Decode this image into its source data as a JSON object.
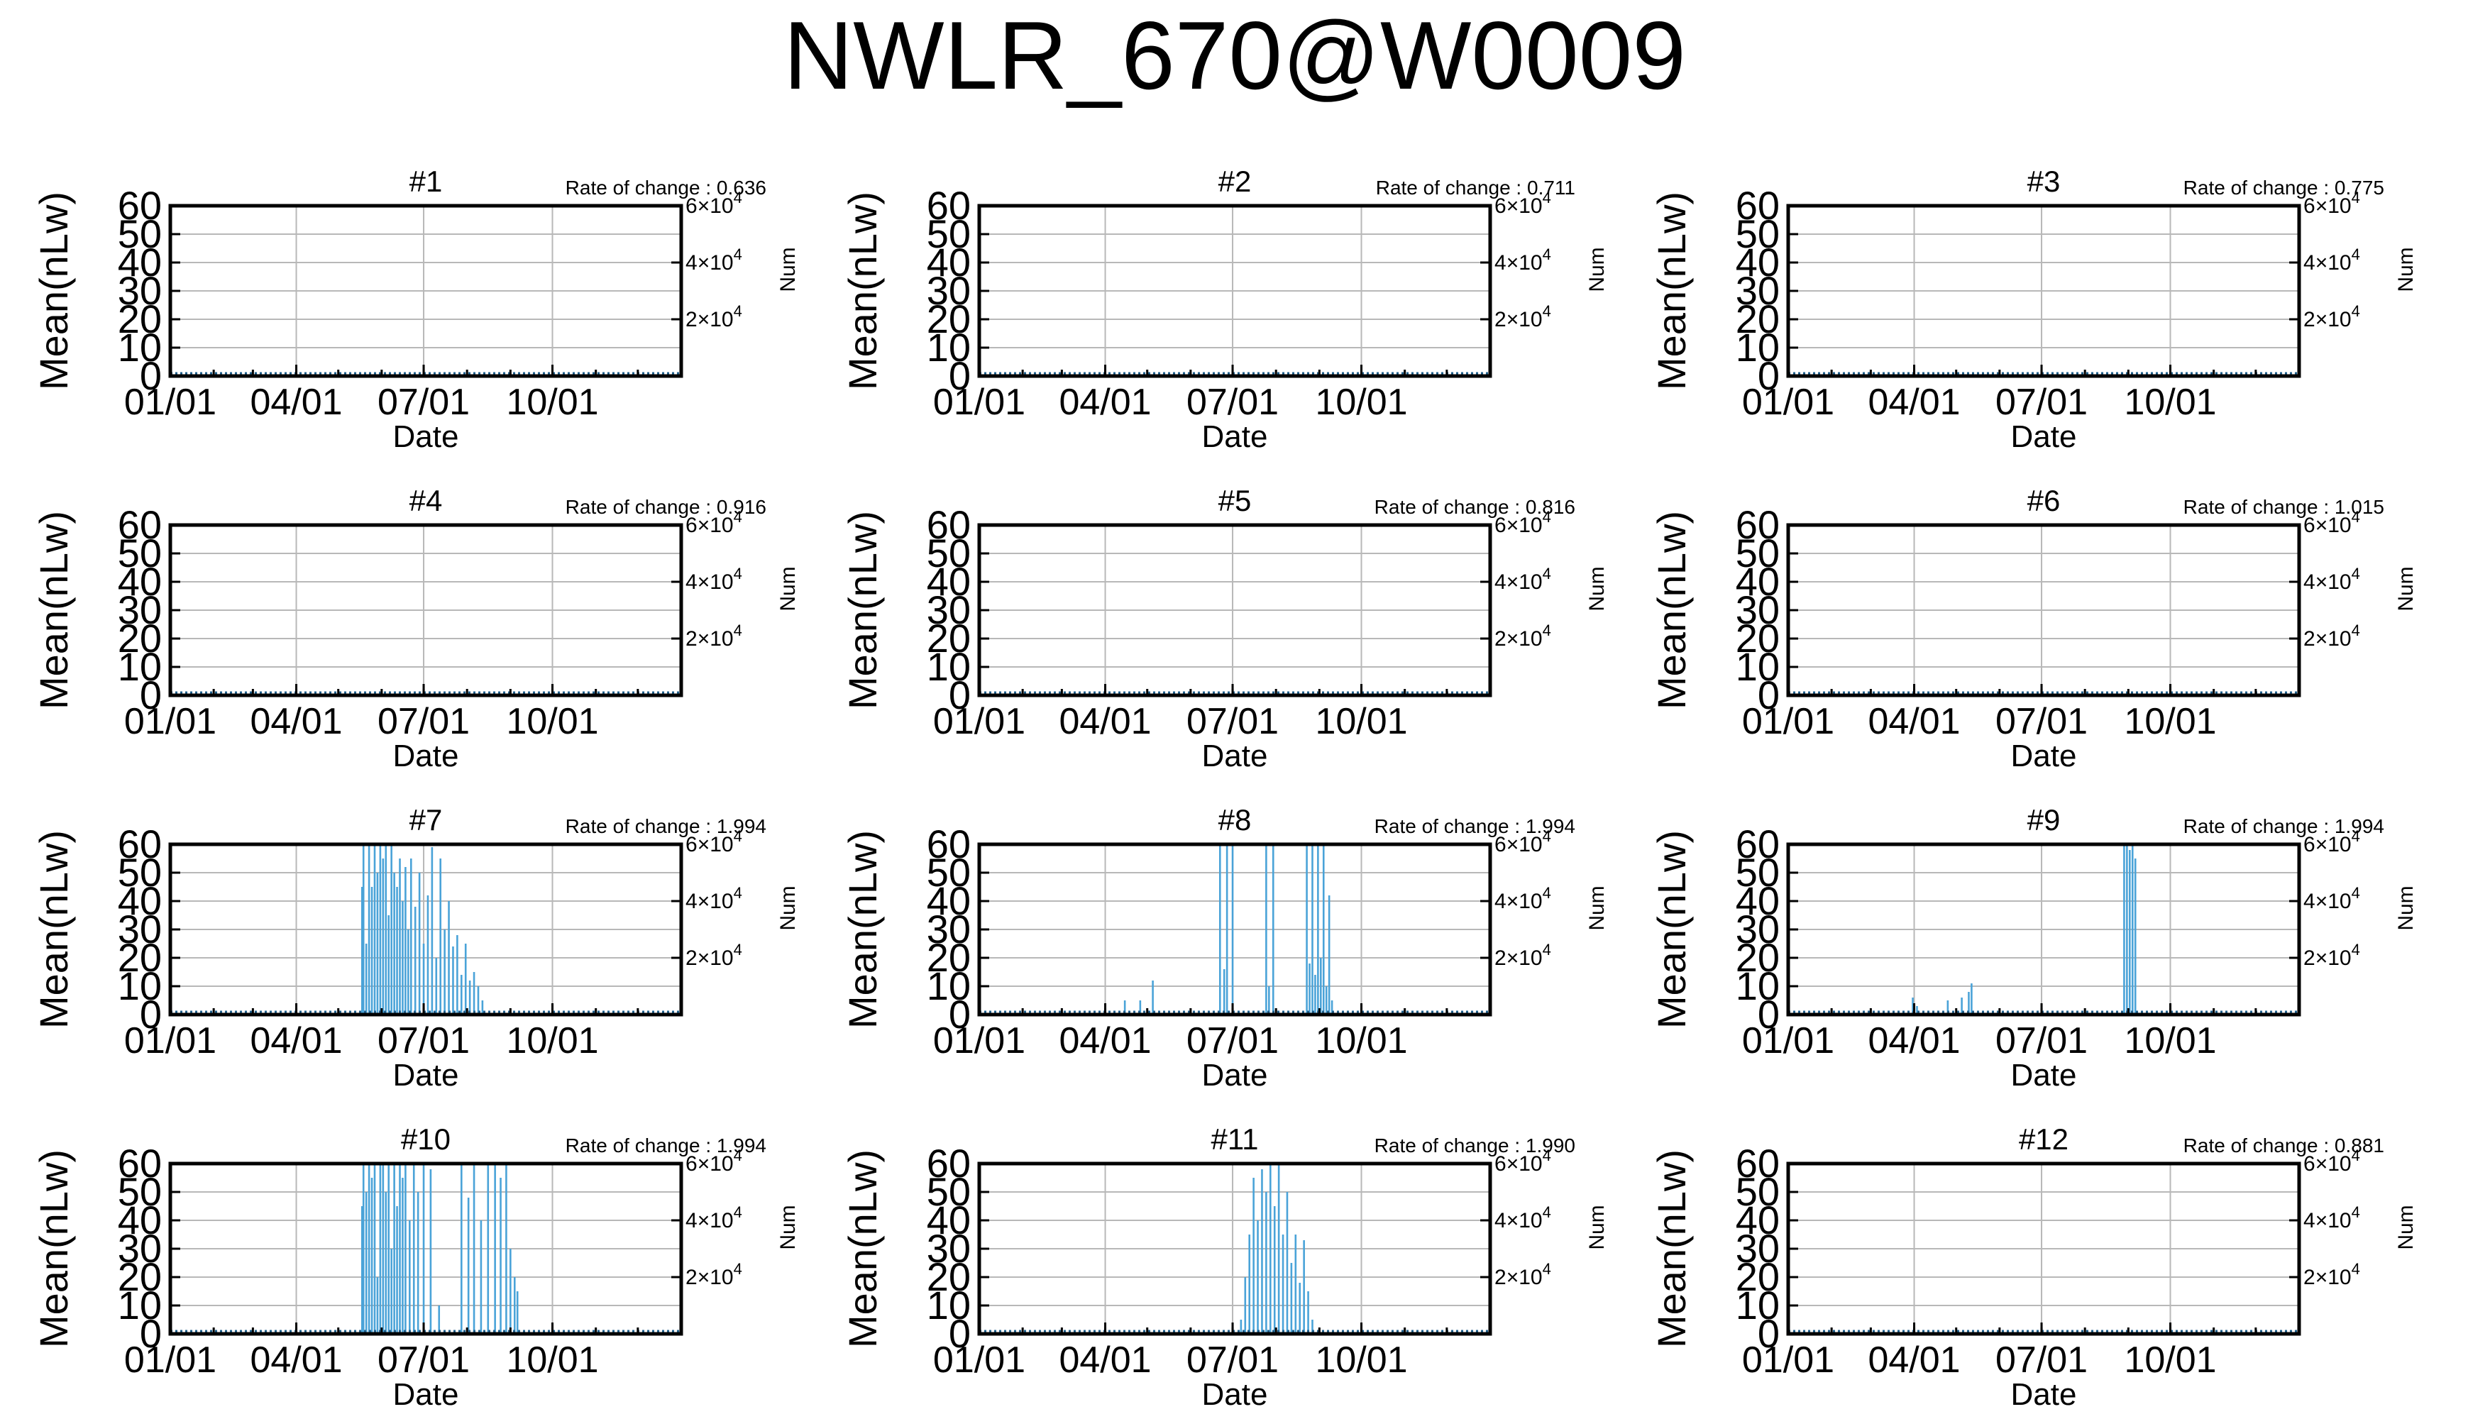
{
  "title": "NWLR_670@W0009",
  "common": {
    "ylabel": "Mean(nLw)",
    "y2label": "Num",
    "xlabel": "Date",
    "y_ticks": [
      "0",
      "10",
      "20",
      "30",
      "40",
      "50",
      "60"
    ],
    "y2_ticks": [
      {
        "mant": "2",
        "exp": "4"
      },
      {
        "mant": "4",
        "exp": "4"
      },
      {
        "mant": "6",
        "exp": "4"
      }
    ],
    "x_ticks": [
      "01/01",
      "04/01",
      "07/01",
      "10/01"
    ],
    "rate_label": "Rate of change : ",
    "colors": {
      "series": "#4aa3d8",
      "baseline": "#1f5f8b",
      "grid": "#b8b8b8",
      "axis": "#000000"
    }
  },
  "chart_data": [
    {
      "type": "bar",
      "panel": "#1",
      "rate": "0.636",
      "xlabel": "Date",
      "ylabel": "Mean(nLw)",
      "y2label": "Num",
      "x_domain": [
        "01/01",
        "12/31"
      ],
      "ylim": [
        0,
        60
      ],
      "y2lim": [
        0,
        60000
      ],
      "grid": true,
      "bars": []
    },
    {
      "type": "bar",
      "panel": "#2",
      "rate": "0.711",
      "xlabel": "Date",
      "ylabel": "Mean(nLw)",
      "y2label": "Num",
      "x_domain": [
        "01/01",
        "12/31"
      ],
      "ylim": [
        0,
        60
      ],
      "y2lim": [
        0,
        60000
      ],
      "grid": true,
      "bars": []
    },
    {
      "type": "bar",
      "panel": "#3",
      "rate": "0.775",
      "xlabel": "Date",
      "ylabel": "Mean(nLw)",
      "y2label": "Num",
      "x_domain": [
        "01/01",
        "12/31"
      ],
      "ylim": [
        0,
        60
      ],
      "y2lim": [
        0,
        60000
      ],
      "grid": true,
      "bars": []
    },
    {
      "type": "bar",
      "panel": "#4",
      "rate": "0.916",
      "xlabel": "Date",
      "ylabel": "Mean(nLw)",
      "y2label": "Num",
      "x_domain": [
        "01/01",
        "12/31"
      ],
      "ylim": [
        0,
        60
      ],
      "y2lim": [
        0,
        60000
      ],
      "grid": true,
      "bars": []
    },
    {
      "type": "bar",
      "panel": "#5",
      "rate": "0.816",
      "xlabel": "Date",
      "ylabel": "Mean(nLw)",
      "y2label": "Num",
      "x_domain": [
        "01/01",
        "12/31"
      ],
      "ylim": [
        0,
        60
      ],
      "y2lim": [
        0,
        60000
      ],
      "grid": true,
      "bars": []
    },
    {
      "type": "bar",
      "panel": "#6",
      "rate": "1.015",
      "xlabel": "Date",
      "ylabel": "Mean(nLw)",
      "y2label": "Num",
      "x_domain": [
        "01/01",
        "12/31"
      ],
      "ylim": [
        0,
        60
      ],
      "y2lim": [
        0,
        60000
      ],
      "grid": true,
      "bars": []
    },
    {
      "type": "bar",
      "panel": "#7",
      "rate": "1.994",
      "xlabel": "Date",
      "ylabel": "Mean(nLw)",
      "y2label": "Num",
      "x_domain": [
        "01/01",
        "12/31"
      ],
      "ylim": [
        0,
        60
      ],
      "y2lim": [
        0,
        60000
      ],
      "grid": true,
      "bars": [
        {
          "date": "05/18",
          "value": 45
        },
        {
          "date": "05/19",
          "value": 60
        },
        {
          "date": "05/21",
          "value": 25
        },
        {
          "date": "05/23",
          "value": 60
        },
        {
          "date": "05/25",
          "value": 45
        },
        {
          "date": "05/27",
          "value": 60
        },
        {
          "date": "05/29",
          "value": 50
        },
        {
          "date": "05/31",
          "value": 60
        },
        {
          "date": "06/02",
          "value": 55
        },
        {
          "date": "06/04",
          "value": 60
        },
        {
          "date": "06/06",
          "value": 35
        },
        {
          "date": "06/08",
          "value": 60
        },
        {
          "date": "06/10",
          "value": 50
        },
        {
          "date": "06/12",
          "value": 45
        },
        {
          "date": "06/14",
          "value": 55
        },
        {
          "date": "06/16",
          "value": 40
        },
        {
          "date": "06/18",
          "value": 52
        },
        {
          "date": "06/20",
          "value": 30
        },
        {
          "date": "06/22",
          "value": 55
        },
        {
          "date": "06/25",
          "value": 38
        },
        {
          "date": "06/28",
          "value": 50
        },
        {
          "date": "07/01",
          "value": 25
        },
        {
          "date": "07/04",
          "value": 42
        },
        {
          "date": "07/07",
          "value": 59
        },
        {
          "date": "07/10",
          "value": 20
        },
        {
          "date": "07/13",
          "value": 55
        },
        {
          "date": "07/16",
          "value": 30
        },
        {
          "date": "07/19",
          "value": 40
        },
        {
          "date": "07/22",
          "value": 24
        },
        {
          "date": "07/25",
          "value": 28
        },
        {
          "date": "07/28",
          "value": 14
        },
        {
          "date": "07/31",
          "value": 25
        },
        {
          "date": "08/03",
          "value": 12
        },
        {
          "date": "08/06",
          "value": 15
        },
        {
          "date": "08/09",
          "value": 10
        },
        {
          "date": "08/12",
          "value": 5
        }
      ]
    },
    {
      "type": "bar",
      "panel": "#8",
      "rate": "1.994",
      "xlabel": "Date",
      "ylabel": "Mean(nLw)",
      "y2label": "Num",
      "x_domain": [
        "01/01",
        "12/31"
      ],
      "ylim": [
        0,
        60
      ],
      "y2lim": [
        0,
        60000
      ],
      "grid": true,
      "bars": [
        {
          "date": "04/15",
          "value": 5
        },
        {
          "date": "04/26",
          "value": 5
        },
        {
          "date": "05/05",
          "value": 12
        },
        {
          "date": "06/22",
          "value": 60
        },
        {
          "date": "06/25",
          "value": 16
        },
        {
          "date": "06/27",
          "value": 60
        },
        {
          "date": "07/01",
          "value": 60
        },
        {
          "date": "07/25",
          "value": 60
        },
        {
          "date": "07/27",
          "value": 10
        },
        {
          "date": "07/30",
          "value": 60
        },
        {
          "date": "08/23",
          "value": 60
        },
        {
          "date": "08/25",
          "value": 18
        },
        {
          "date": "08/27",
          "value": 60
        },
        {
          "date": "08/29",
          "value": 14
        },
        {
          "date": "08/31",
          "value": 60
        },
        {
          "date": "09/02",
          "value": 20
        },
        {
          "date": "09/04",
          "value": 60
        },
        {
          "date": "09/06",
          "value": 10
        },
        {
          "date": "09/08",
          "value": 42
        },
        {
          "date": "09/10",
          "value": 5
        }
      ]
    },
    {
      "type": "bar",
      "panel": "#9",
      "rate": "1.994",
      "xlabel": "Date",
      "ylabel": "Mean(nLw)",
      "y2label": "Num",
      "x_domain": [
        "01/01",
        "12/31"
      ],
      "ylim": [
        0,
        60
      ],
      "y2lim": [
        0,
        60000
      ],
      "grid": true,
      "bars": [
        {
          "date": "03/31",
          "value": 6
        },
        {
          "date": "04/03",
          "value": 3
        },
        {
          "date": "04/25",
          "value": 5
        },
        {
          "date": "05/05",
          "value": 6
        },
        {
          "date": "05/10",
          "value": 8
        },
        {
          "date": "05/12",
          "value": 11
        },
        {
          "date": "08/29",
          "value": 60
        },
        {
          "date": "08/31",
          "value": 60
        },
        {
          "date": "09/02",
          "value": 58
        },
        {
          "date": "09/04",
          "value": 60
        },
        {
          "date": "09/06",
          "value": 55
        }
      ]
    },
    {
      "type": "bar",
      "panel": "#10",
      "rate": "1.994",
      "xlabel": "Date",
      "ylabel": "Mean(nLw)",
      "y2label": "Num",
      "x_domain": [
        "01/01",
        "12/31"
      ],
      "ylim": [
        0,
        60
      ],
      "y2lim": [
        0,
        60000
      ],
      "grid": true,
      "bars": [
        {
          "date": "05/18",
          "value": 45
        },
        {
          "date": "05/19",
          "value": 60
        },
        {
          "date": "05/21",
          "value": 50
        },
        {
          "date": "05/23",
          "value": 60
        },
        {
          "date": "05/25",
          "value": 55
        },
        {
          "date": "05/27",
          "value": 60
        },
        {
          "date": "05/29",
          "value": 20
        },
        {
          "date": "05/31",
          "value": 60
        },
        {
          "date": "06/02",
          "value": 60
        },
        {
          "date": "06/04",
          "value": 50
        },
        {
          "date": "06/06",
          "value": 60
        },
        {
          "date": "06/08",
          "value": 30
        },
        {
          "date": "06/10",
          "value": 60
        },
        {
          "date": "06/12",
          "value": 45
        },
        {
          "date": "06/14",
          "value": 60
        },
        {
          "date": "06/16",
          "value": 55
        },
        {
          "date": "06/18",
          "value": 60
        },
        {
          "date": "06/21",
          "value": 40
        },
        {
          "date": "06/24",
          "value": 60
        },
        {
          "date": "06/27",
          "value": 50
        },
        {
          "date": "07/01",
          "value": 60
        },
        {
          "date": "07/06",
          "value": 58
        },
        {
          "date": "07/12",
          "value": 10
        },
        {
          "date": "07/28",
          "value": 60
        },
        {
          "date": "08/02",
          "value": 48
        },
        {
          "date": "08/06",
          "value": 60
        },
        {
          "date": "08/11",
          "value": 40
        },
        {
          "date": "08/16",
          "value": 60
        },
        {
          "date": "08/21",
          "value": 60
        },
        {
          "date": "08/25",
          "value": 55
        },
        {
          "date": "08/29",
          "value": 60
        },
        {
          "date": "09/01",
          "value": 30
        },
        {
          "date": "09/04",
          "value": 20
        },
        {
          "date": "09/06",
          "value": 15
        }
      ]
    },
    {
      "type": "bar",
      "panel": "#11",
      "rate": "1.990",
      "xlabel": "Date",
      "ylabel": "Mean(nLw)",
      "y2label": "Num",
      "x_domain": [
        "01/01",
        "12/31"
      ],
      "ylim": [
        0,
        60
      ],
      "y2lim": [
        0,
        60000
      ],
      "grid": true,
      "bars": [
        {
          "date": "07/07",
          "value": 5
        },
        {
          "date": "07/10",
          "value": 20
        },
        {
          "date": "07/13",
          "value": 35
        },
        {
          "date": "07/16",
          "value": 55
        },
        {
          "date": "07/19",
          "value": 40
        },
        {
          "date": "07/22",
          "value": 58
        },
        {
          "date": "07/25",
          "value": 50
        },
        {
          "date": "07/28",
          "value": 60
        },
        {
          "date": "07/31",
          "value": 45
        },
        {
          "date": "08/03",
          "value": 60
        },
        {
          "date": "08/06",
          "value": 35
        },
        {
          "date": "08/09",
          "value": 50
        },
        {
          "date": "08/12",
          "value": 25
        },
        {
          "date": "08/15",
          "value": 35
        },
        {
          "date": "08/18",
          "value": 18
        },
        {
          "date": "08/21",
          "value": 33
        },
        {
          "date": "08/24",
          "value": 15
        },
        {
          "date": "08/27",
          "value": 5
        }
      ]
    },
    {
      "type": "bar",
      "panel": "#12",
      "rate": "0.881",
      "xlabel": "Date",
      "ylabel": "Mean(nLw)",
      "y2label": "Num",
      "x_domain": [
        "01/01",
        "12/31"
      ],
      "ylim": [
        0,
        60
      ],
      "y2lim": [
        0,
        60000
      ],
      "grid": true,
      "bars": []
    }
  ]
}
